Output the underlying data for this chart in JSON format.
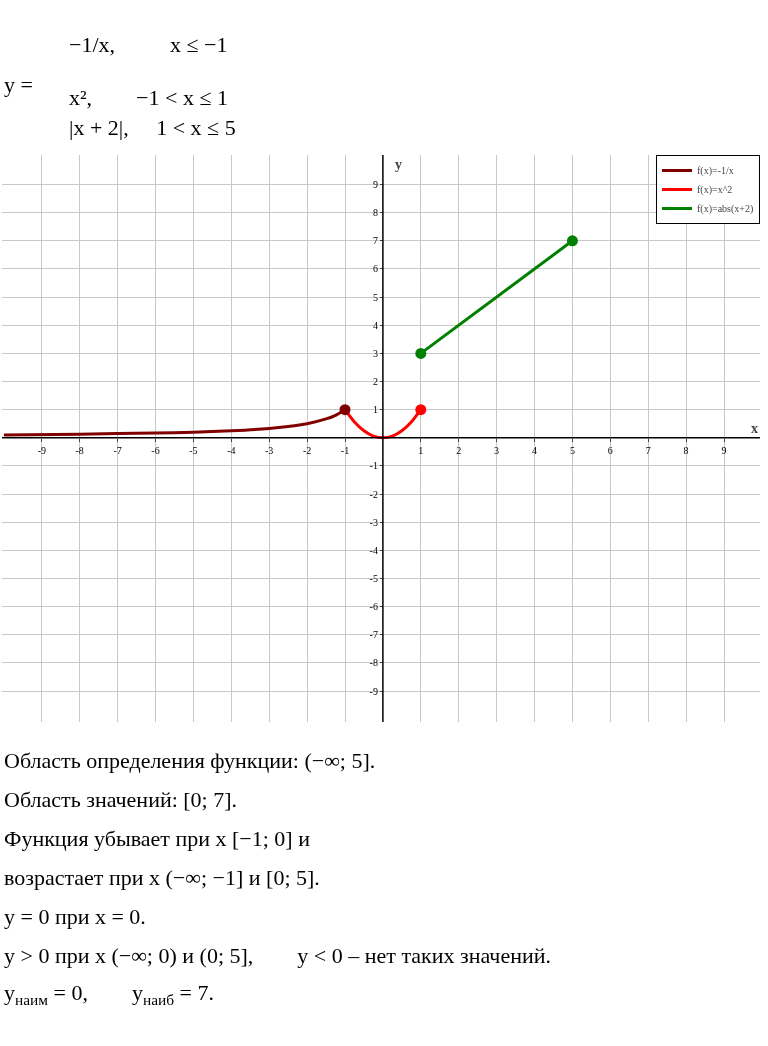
{
  "chart_data": {
    "type": "line",
    "xlabel": "x",
    "ylabel": "y",
    "xlim": [
      -10.05,
      9.95
    ],
    "ylim": [
      -10.1,
      10.05
    ],
    "xticks": [
      -9,
      -8,
      -7,
      -6,
      -5,
      -4,
      -3,
      -2,
      -1,
      1,
      2,
      3,
      4,
      5,
      6,
      7,
      8,
      9
    ],
    "yticks": [
      -9,
      -8,
      -7,
      -6,
      -5,
      -4,
      -3,
      -2,
      -1,
      1,
      2,
      3,
      4,
      5,
      6,
      7,
      8,
      9
    ],
    "grid": true,
    "legend": "top right",
    "line_style": "solid",
    "series": [
      {
        "name": "f(x)=-1/x",
        "color": "#800000",
        "x": [
          -10,
          -8,
          -6,
          -5,
          -4,
          -3,
          -2.5,
          -2,
          -1.5,
          -1.25,
          -1
        ],
        "values": [
          0.1,
          0.13,
          0.17,
          0.2,
          0.25,
          0.33,
          0.4,
          0.5,
          0.67,
          0.8,
          1
        ]
      },
      {
        "name": "f(x)=x^2",
        "color": "#ff0000",
        "x": [
          -1,
          -0.75,
          -0.5,
          -0.25,
          0,
          0.25,
          0.5,
          0.75,
          1
        ],
        "values": [
          1,
          0.56,
          0.25,
          0.06,
          0,
          0.06,
          0.25,
          0.56,
          1
        ]
      },
      {
        "name": "f(x)=abs(x+2)",
        "color": "#008000",
        "x": [
          1,
          5
        ],
        "values": [
          3,
          7
        ]
      },
      {
        "type": "scatter",
        "marker": "circle",
        "color": "#800000",
        "x": [
          -1
        ],
        "values": [
          1
        ]
      },
      {
        "type": "scatter",
        "marker": "circle",
        "color": "#ff0000",
        "x": [
          1
        ],
        "values": [
          1
        ]
      },
      {
        "type": "scatter",
        "marker": "circle",
        "color": "#008000",
        "x": [
          1,
          5
        ],
        "values": [
          3,
          7
        ]
      }
    ],
    "annotations": [
      "y =",
      "−1/x,          x ≤ −1",
      "x²,        −1 < x ≤ 1",
      "|x + 2|,     1 < x ≤ 5",
      "Область определения функции: (−∞; 5].",
      "Область значений: [0; 7].",
      "Функция убывает при x [−1; 0] и",
      "возрастает при x (−∞; −1] и [0; 5].",
      "y = 0 при x = 0.",
      "y > 0 при x (−∞; 0) и (0; 5],        y < 0 – нет таких значений.",
      "y$_{наим}$ = 0,        y$_{наиб}$ = 7."
    ]
  }
}
